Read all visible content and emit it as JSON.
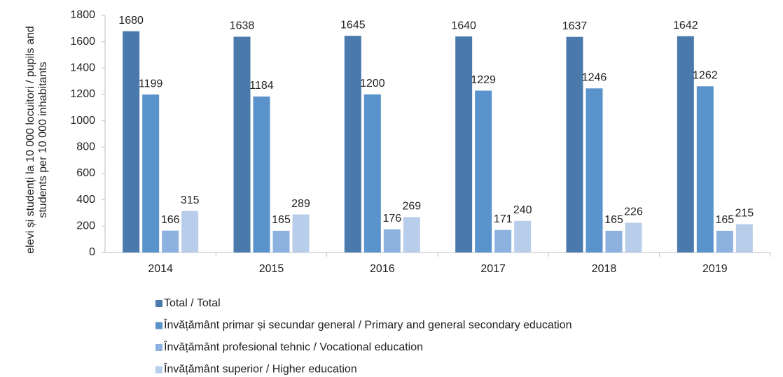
{
  "chart_data": {
    "type": "bar",
    "ylabel": [
      "elevi și studenți la 10 000 locuitori / pupils and",
      "students per 10 000 inhabitants"
    ],
    "categories": [
      "2014",
      "2015",
      "2016",
      "2017",
      "2018",
      "2019"
    ],
    "series": [
      {
        "name": "Total / Total",
        "color": "#4a7aab",
        "values": [
          1680,
          1638,
          1645,
          1640,
          1637,
          1642
        ]
      },
      {
        "name": "Învățământ primar și secundar general / Primary and general secondary education",
        "color": "#5a92cc",
        "values": [
          1199,
          1184,
          1200,
          1229,
          1246,
          1262
        ]
      },
      {
        "name": "Învățământ profesional tehnic / Vocational education",
        "color": "#8db1de",
        "values": [
          166,
          165,
          176,
          171,
          165,
          165
        ]
      },
      {
        "name": "Învățământ superior / Higher education",
        "color": "#b8cdea",
        "values": [
          315,
          289,
          269,
          240,
          226,
          215
        ]
      }
    ],
    "ylim": [
      0,
      1800
    ],
    "yticks": [
      0,
      200,
      400,
      600,
      800,
      1000,
      1200,
      1400,
      1600,
      1800
    ],
    "legend": "bottom"
  }
}
